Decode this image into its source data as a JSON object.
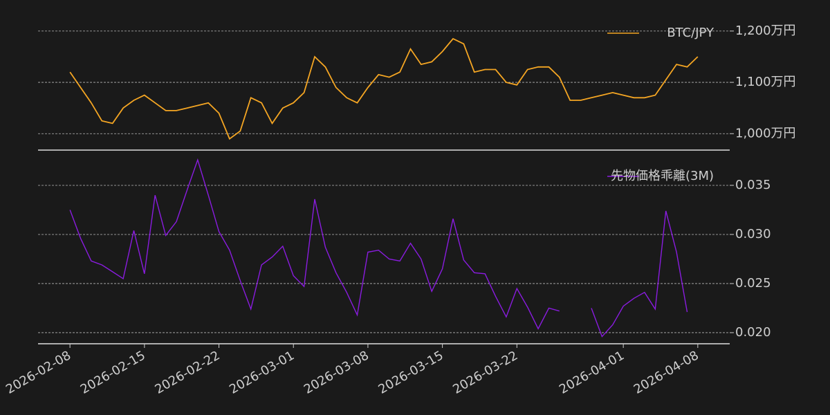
{
  "chart_data": [
    {
      "type": "line",
      "x": [
        "2026-02-08",
        "2026-02-09",
        "2026-02-10",
        "2026-02-11",
        "2026-02-12",
        "2026-02-13",
        "2026-02-14",
        "2026-02-15",
        "2026-02-16",
        "2026-02-17",
        "2026-02-18",
        "2026-02-19",
        "2026-02-20",
        "2026-02-21",
        "2026-02-22",
        "2026-02-23",
        "2026-02-24",
        "2026-02-25",
        "2026-02-26",
        "2026-02-27",
        "2026-02-28",
        "2026-03-01",
        "2026-03-02",
        "2026-03-03",
        "2026-03-04",
        "2026-03-05",
        "2026-03-06",
        "2026-03-07",
        "2026-03-08",
        "2026-03-09",
        "2026-03-10",
        "2026-03-11",
        "2026-03-12",
        "2026-03-13",
        "2026-03-14",
        "2026-03-15",
        "2026-03-16",
        "2026-03-17",
        "2026-03-18",
        "2026-03-19",
        "2026-03-20",
        "2026-03-21",
        "2026-03-22",
        "2026-03-23",
        "2026-03-24",
        "2026-03-25",
        "2026-03-26",
        "2026-03-27",
        "2026-03-28",
        "2026-03-29",
        "2026-03-30",
        "2026-03-31",
        "2026-04-01",
        "2026-04-02",
        "2026-04-03",
        "2026-04-04",
        "2026-04-05",
        "2026-04-06",
        "2026-04-07",
        "2026-04-08"
      ],
      "series": [
        {
          "name": "BTC/JPY",
          "color": "#f5a623",
          "values": [
            1120,
            1090,
            1060,
            1025,
            1020,
            1050,
            1065,
            1075,
            1060,
            1045,
            1045,
            1050,
            1055,
            1060,
            1040,
            990,
            1005,
            1070,
            1060,
            1020,
            1050,
            1060,
            1080,
            1150,
            1130,
            1090,
            1070,
            1060,
            1090,
            1115,
            1110,
            1120,
            1165,
            1135,
            1140,
            1160,
            1185,
            1175,
            1120,
            1125,
            1125,
            1100,
            1095,
            1125,
            1130,
            1130,
            1110,
            1065,
            1065,
            1070,
            1075,
            1080,
            1075,
            1070,
            1070,
            1075,
            1105,
            1135,
            1130,
            1150
          ]
        }
      ],
      "xlim": [
        "2026-02-05",
        "2026-04-11"
      ],
      "ylim": [
        968,
        1247
      ],
      "yticks": [
        {
          "value": 1000,
          "label": "1,000万円"
        },
        {
          "value": 1100,
          "label": "1,100万円"
        },
        {
          "value": 1200,
          "label": "1,200万円"
        }
      ],
      "grid": true,
      "legend": "upper right"
    },
    {
      "type": "line",
      "x": [
        "2026-02-08",
        "2026-02-09",
        "2026-02-10",
        "2026-02-11",
        "2026-02-12",
        "2026-02-13",
        "2026-02-14",
        "2026-02-15",
        "2026-02-16",
        "2026-02-17",
        "2026-02-18",
        "2026-02-19",
        "2026-02-20",
        "2026-02-21",
        "2026-02-22",
        "2026-02-23",
        "2026-02-24",
        "2026-02-25",
        "2026-02-26",
        "2026-02-27",
        "2026-02-28",
        "2026-03-01",
        "2026-03-02",
        "2026-03-03",
        "2026-03-04",
        "2026-03-05",
        "2026-03-06",
        "2026-03-07",
        "2026-03-08",
        "2026-03-09",
        "2026-03-10",
        "2026-03-11",
        "2026-03-12",
        "2026-03-13",
        "2026-03-14",
        "2026-03-15",
        "2026-03-16",
        "2026-03-17",
        "2026-03-18",
        "2026-03-19",
        "2026-03-20",
        "2026-03-21",
        "2026-03-22",
        "2026-03-23",
        "2026-03-24",
        "2026-03-25",
        "2026-03-26",
        "2026-03-27",
        "2026-03-28",
        "2026-03-29",
        "2026-03-30",
        "2026-03-31",
        "2026-04-01",
        "2026-04-02",
        "2026-04-03",
        "2026-04-04",
        "2026-04-05",
        "2026-04-06",
        "2026-04-07"
      ],
      "series": [
        {
          "name": "先物価格乖離(3M)",
          "color": "#8a1ce0",
          "values": [
            0.0325,
            0.0296,
            0.0273,
            0.0269,
            0.0262,
            0.0255,
            0.0304,
            0.026,
            0.034,
            0.0299,
            0.0313,
            0.0345,
            0.0376,
            0.034,
            0.0303,
            0.0284,
            0.0253,
            0.0224,
            0.0269,
            0.0277,
            0.0288,
            0.0258,
            0.0247,
            0.0336,
            0.0287,
            0.0261,
            0.0241,
            0.0218,
            0.0282,
            0.0284,
            0.0275,
            0.0273,
            0.0291,
            0.0275,
            0.0242,
            0.0265,
            0.0316,
            0.0274,
            0.0261,
            0.026,
            0.0237,
            0.0216,
            0.0245,
            0.0226,
            0.0204,
            0.0225,
            0.0222,
            null,
            null,
            0.0225,
            0.0196,
            0.0208,
            0.0227,
            0.0235,
            0.0241,
            0.0224,
            0.0324,
            0.0282,
            0.0221
          ]
        }
      ],
      "xlim": [
        "2026-02-05",
        "2026-04-11"
      ],
      "ylim": [
        0.01887,
        0.03859
      ],
      "yticks": [
        {
          "value": 0.02,
          "label": "0.020"
        },
        {
          "value": 0.025,
          "label": "0.025"
        },
        {
          "value": 0.03,
          "label": "0.030"
        },
        {
          "value": 0.035,
          "label": "0.035"
        }
      ],
      "xticks": [
        "2026-02-08",
        "2026-02-15",
        "2026-02-22",
        "2026-03-01",
        "2026-03-08",
        "2026-03-15",
        "2026-03-22",
        "2026-04-01",
        "2026-04-08"
      ],
      "grid": true,
      "legend": "upper right"
    }
  ]
}
